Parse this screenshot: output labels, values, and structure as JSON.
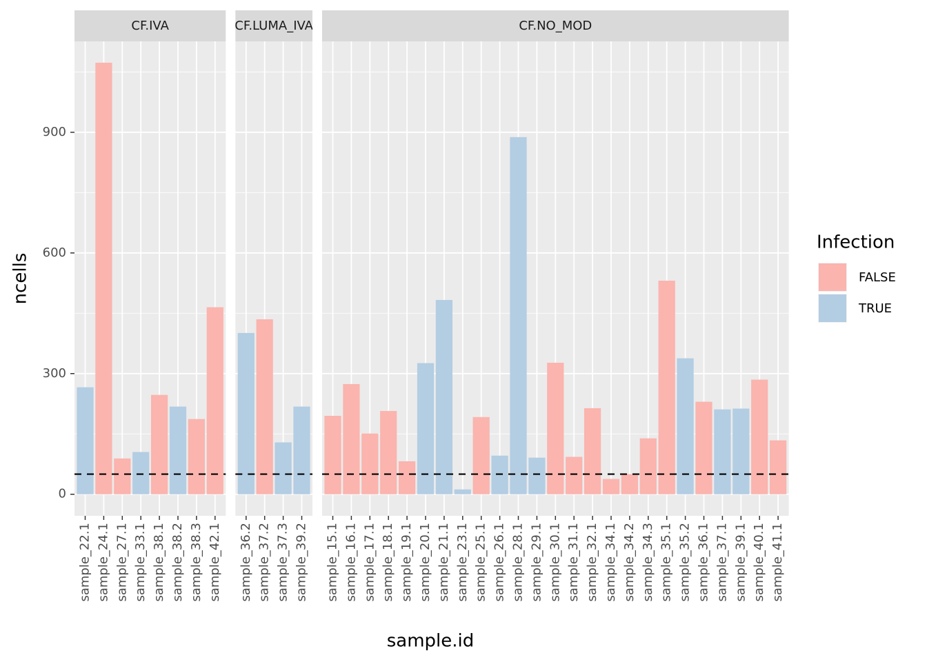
{
  "chart_data": {
    "type": "bar",
    "xlabel": "sample.id",
    "ylabel": "ncells",
    "ylim": [
      -53.6,
      1126
    ],
    "yticks": [
      0,
      300,
      600,
      900
    ],
    "grid": true,
    "hline": 50,
    "legend": {
      "title": "Infection",
      "position": "right",
      "entries": [
        {
          "name": "FALSE",
          "color": "#fbb4ae"
        },
        {
          "name": "TRUE",
          "color": "#b3cde3"
        }
      ]
    },
    "facets": [
      {
        "title": "CF.IVA",
        "categories": [
          "sample_22.1",
          "sample_24.1",
          "sample_27.1",
          "sample_33.1",
          "sample_38.1",
          "sample_38.2",
          "sample_38.3",
          "sample_42.1"
        ],
        "values": [
          266,
          1073,
          89,
          105,
          247,
          218,
          187,
          465
        ],
        "groups": [
          "TRUE",
          "FALSE",
          "FALSE",
          "TRUE",
          "FALSE",
          "TRUE",
          "FALSE",
          "FALSE"
        ]
      },
      {
        "title": "CF.LUMA_IVA",
        "categories": [
          "sample_36.2",
          "sample_37.2",
          "sample_37.3",
          "sample_39.2"
        ],
        "values": [
          401,
          435,
          129,
          218
        ],
        "groups": [
          "TRUE",
          "FALSE",
          "TRUE",
          "TRUE"
        ]
      },
      {
        "title": "CF.NO_MOD",
        "categories": [
          "sample_15.1",
          "sample_16.1",
          "sample_17.1",
          "sample_18.1",
          "sample_19.1",
          "sample_20.1",
          "sample_21.1",
          "sample_23.1",
          "sample_25.1",
          "sample_26.1",
          "sample_28.1",
          "sample_29.1",
          "sample_30.1",
          "sample_31.1",
          "sample_32.1",
          "sample_34.1",
          "sample_34.2",
          "sample_34.3",
          "sample_35.1",
          "sample_35.2",
          "sample_36.1",
          "sample_37.1",
          "sample_39.1",
          "sample_40.1",
          "sample_41.1"
        ],
        "values": [
          195,
          274,
          151,
          207,
          82,
          326,
          483,
          12,
          192,
          96,
          888,
          91,
          327,
          93,
          214,
          38,
          50,
          139,
          531,
          338,
          230,
          211,
          213,
          285,
          134
        ],
        "groups": [
          "FALSE",
          "FALSE",
          "FALSE",
          "FALSE",
          "FALSE",
          "TRUE",
          "TRUE",
          "TRUE",
          "FALSE",
          "TRUE",
          "TRUE",
          "TRUE",
          "FALSE",
          "FALSE",
          "FALSE",
          "FALSE",
          "FALSE",
          "FALSE",
          "FALSE",
          "TRUE",
          "FALSE",
          "TRUE",
          "TRUE",
          "FALSE",
          "FALSE"
        ]
      }
    ]
  }
}
